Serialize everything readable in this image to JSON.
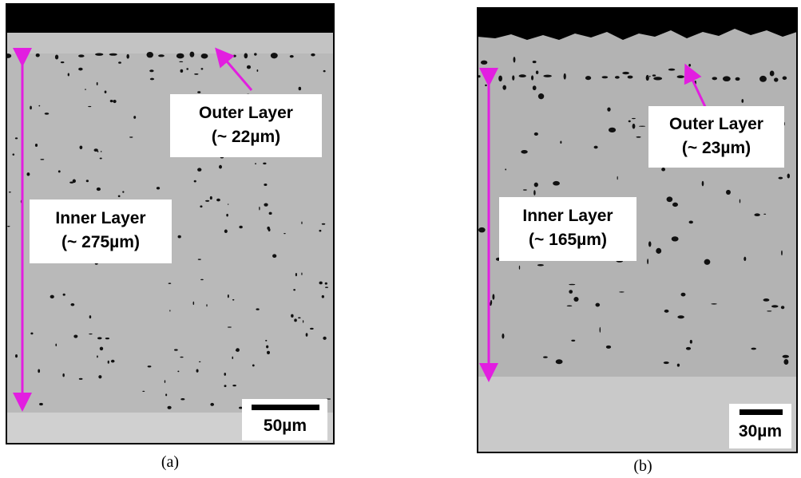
{
  "panels": [
    {
      "caption": "(a)",
      "outer_label": "Outer Layer",
      "outer_thickness": "(~ 22µm)",
      "inner_label": "Inner Layer",
      "inner_thickness": "(~ 275µm)",
      "scale_bar": "50µm"
    },
    {
      "caption": "(b)",
      "outer_label": "Outer Layer",
      "outer_thickness": "(~ 23µm)",
      "inner_label": "Inner Layer",
      "inner_thickness": "(~ 165µm)",
      "scale_bar": "30µm"
    }
  ]
}
